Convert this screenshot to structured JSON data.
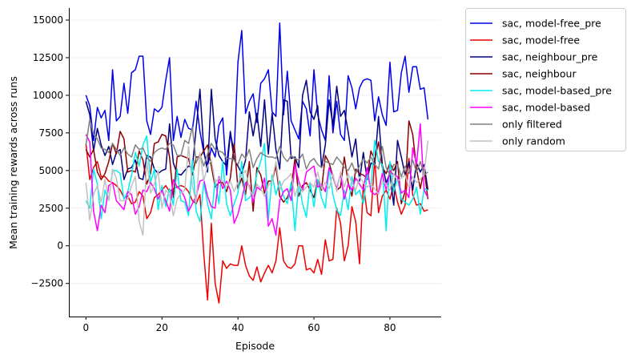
{
  "chart_data": {
    "type": "line",
    "xlabel": "Episode",
    "ylabel": "Mean training rewards across runs",
    "xlim": [
      -4.5,
      93.5
    ],
    "ylim": [
      -4700,
      15800
    ],
    "xticks": [
      0,
      20,
      40,
      60,
      80
    ],
    "yticks": [
      -2500,
      0,
      2500,
      5000,
      7500,
      10000,
      12500,
      15000
    ],
    "ytick_labels": [
      "−2500",
      "0",
      "2500",
      "5000",
      "7500",
      "10000",
      "12500",
      "15000"
    ],
    "grid": "horizontal",
    "legend_placement": "outside-top-right",
    "series": [
      {
        "name": "sac, model-free_pre",
        "color": "#0000ee",
        "values": [
          10000,
          9300,
          7000,
          9200,
          8500,
          9000,
          7000,
          11700,
          8300,
          8600,
          10800,
          8800,
          11500,
          11700,
          12600,
          12600,
          8300,
          7400,
          9100,
          8900,
          9200,
          11000,
          12500,
          7000,
          8600,
          7200,
          8400,
          7800,
          7700,
          9600,
          7600,
          6200,
          5300,
          6500,
          5900,
          8000,
          8500,
          4700,
          7500,
          6200,
          12200,
          14300,
          8800,
          9600,
          10100,
          8200,
          10800,
          11100,
          11700,
          8900,
          8600,
          14800,
          8700,
          11600,
          8300,
          7700,
          7100,
          9600,
          9100,
          7300,
          11700,
          8700,
          7700,
          7000,
          11300,
          7500,
          9600,
          7400,
          7000,
          11300,
          10500,
          9100,
          10500,
          11000,
          11100,
          11000,
          8300,
          9900,
          8700,
          8000,
          12200,
          8900,
          9000,
          11500,
          12600,
          10200,
          11900,
          11900,
          10400,
          10500,
          8400
        ]
      },
      {
        "name": "sac, model-free",
        "color": "#ee0000",
        "values": [
          6800,
          4400,
          5200,
          5600,
          4600,
          4600,
          4300,
          4200,
          4000,
          3700,
          3200,
          3300,
          2800,
          2900,
          3600,
          3300,
          1800,
          2200,
          3200,
          3400,
          3700,
          4000,
          3600,
          3800,
          3900,
          4000,
          3900,
          3600,
          3000,
          2800,
          3400,
          -500,
          -3600,
          1500,
          -2500,
          -3800,
          -1000,
          -1500,
          -1200,
          -1300,
          -1300,
          0,
          -1300,
          -2000,
          -2300,
          -1400,
          -2400,
          -1800,
          -1300,
          -1800,
          -1000,
          1200,
          -1000,
          -1400,
          -1500,
          -1200,
          0,
          0,
          -1600,
          -1500,
          -1800,
          -900,
          -1900,
          400,
          -1000,
          -900,
          2500,
          1500,
          -1000,
          0,
          2600,
          1600,
          -1200,
          4100,
          2200,
          2000,
          5800,
          2200,
          3300,
          3700,
          3100,
          4100,
          2900,
          2100,
          2700,
          5800,
          3400,
          2700,
          2800,
          2300,
          2400
        ]
      },
      {
        "name": "sac, neighbour_pre",
        "color": "#000080",
        "values": [
          9600,
          8700,
          6300,
          7800,
          6700,
          6000,
          6600,
          5400,
          6200,
          6400,
          4400,
          5100,
          5200,
          5700,
          4500,
          4400,
          6000,
          5900,
          5100,
          4800,
          5000,
          5100,
          8100,
          5500,
          4800,
          4700,
          5000,
          5300,
          5200,
          7800,
          10400,
          6400,
          4900,
          10400,
          7100,
          6000,
          5600,
          5300,
          7600,
          5700,
          5300,
          4800,
          5700,
          8900,
          7300,
          8800,
          6600,
          9700,
          6100,
          8800,
          6400,
          5100,
          9700,
          9600,
          5800,
          5900,
          5200,
          10000,
          11000,
          8900,
          8400,
          9300,
          5200,
          6700,
          9700,
          8000,
          10600,
          8600,
          9000,
          7600,
          5900,
          7100,
          4300,
          6200,
          4400,
          5500,
          5400,
          8600,
          5400,
          4200,
          4800,
          2700,
          7000,
          5900,
          4700,
          5600,
          3700,
          5500,
          4900,
          5400,
          3700
        ]
      },
      {
        "name": "sac, neighbour",
        "color": "#8b0000",
        "values": [
          6400,
          5900,
          6400,
          4900,
          4400,
          4800,
          5600,
          6800,
          6100,
          7600,
          7100,
          4900,
          5000,
          4900,
          6300,
          5700,
          4100,
          4800,
          6800,
          6900,
          7400,
          7300,
          5900,
          3200,
          5900,
          6000,
          5900,
          5800,
          4700,
          5900,
          5900,
          6300,
          6700,
          5300,
          3900,
          4200,
          4200,
          3600,
          4500,
          6800,
          3800,
          4500,
          3400,
          5600,
          2300,
          5200,
          4700,
          3500,
          4300,
          4300,
          5300,
          3300,
          2900,
          3200,
          3800,
          5800,
          3300,
          4000,
          4200,
          3700,
          3200,
          4400,
          3700,
          6000,
          5500,
          4600,
          3700,
          3900,
          5900,
          4200,
          3300,
          5100,
          4800,
          4700,
          4500,
          6300,
          5700,
          6900,
          5200,
          4800,
          5500,
          5000,
          5600,
          2800,
          3600,
          8300,
          7400,
          5100,
          3800,
          5100,
          3100
        ]
      },
      {
        "name": "sac, model-based_pre",
        "color": "#00eeee",
        "values": [
          3000,
          2500,
          5100,
          4100,
          1800,
          3700,
          3000,
          5000,
          5000,
          4800,
          3100,
          3600,
          4700,
          6200,
          5300,
          6700,
          7300,
          4200,
          5100,
          2400,
          4000,
          2600,
          3800,
          2700,
          5100,
          3000,
          2900,
          2000,
          5700,
          2300,
          1600,
          4200,
          2800,
          1800,
          4400,
          2800,
          5600,
          2800,
          2000,
          2800,
          3500,
          5600,
          3000,
          3200,
          3500,
          4800,
          5600,
          6800,
          1700,
          4700,
          3400,
          4300,
          3300,
          2800,
          4200,
          1000,
          4200,
          2800,
          1900,
          4200,
          2600,
          4400,
          3200,
          2500,
          5100,
          3400,
          2400,
          2000,
          3700,
          2400,
          4600,
          3400,
          3700,
          2800,
          4700,
          3900,
          7000,
          5600,
          5400,
          1000,
          5600,
          3600,
          4500,
          3100,
          2900,
          2700,
          3100,
          3900,
          2100,
          3800,
          3700
        ]
      },
      {
        "name": "sac, model-based",
        "color": "#ff00ff",
        "values": [
          7400,
          6900,
          2300,
          1000,
          2700,
          2200,
          4000,
          4200,
          3000,
          2700,
          2400,
          3600,
          3400,
          2100,
          2600,
          3700,
          3600,
          4200,
          3800,
          3100,
          3700,
          3000,
          2300,
          4400,
          3900,
          3700,
          3200,
          2300,
          2800,
          3300,
          4300,
          4400,
          3300,
          2600,
          2500,
          4600,
          3800,
          4300,
          3700,
          1500,
          2100,
          3100,
          4200,
          4000,
          2900,
          3900,
          3700,
          4500,
          1300,
          1800,
          700,
          3000,
          3600,
          3800,
          3000,
          5400,
          4300,
          3600,
          4900,
          5100,
          5300,
          3900,
          4100,
          3600,
          5200,
          4600,
          3800,
          4800,
          3100,
          4100,
          3700,
          4500,
          4100,
          3700,
          5200,
          3600,
          3400,
          3600,
          4800,
          3700,
          5000,
          4700,
          4600,
          3500,
          3700,
          3200,
          6500,
          5400,
          8100,
          3700,
          3200
        ]
      },
      {
        "name": "only filtered",
        "color": "#808080",
        "values": [
          6700,
          8400,
          7400,
          7100,
          6500,
          6400,
          6200,
          6800,
          6400,
          6000,
          6500,
          6100,
          5900,
          6700,
          6400,
          6500,
          5900,
          5600,
          6200,
          6400,
          6500,
          6400,
          6800,
          6700,
          6000,
          6000,
          7000,
          6800,
          7900,
          5500,
          6100,
          5300,
          6100,
          6800,
          6400,
          6300,
          6200,
          5800,
          5800,
          5700,
          5400,
          6100,
          5800,
          6400,
          5200,
          5800,
          6200,
          6000,
          5900,
          5900,
          5800,
          6600,
          5900,
          5600,
          6000,
          5800,
          5700,
          6100,
          5100,
          5600,
          5800,
          5400,
          5200,
          5600,
          5500,
          5400,
          5900,
          5600,
          5200,
          5000,
          5500,
          4800,
          5300,
          5800,
          5500,
          5900,
          5400,
          5100,
          6600,
          5200,
          4700,
          5400,
          5400,
          4600,
          5300,
          4800,
          5700,
          4900,
          5600,
          4700,
          4900
        ]
      },
      {
        "name": "only random",
        "color": "#c0c0c0",
        "values": [
          4200,
          1700,
          3400,
          4000,
          2900,
          4400,
          3000,
          5100,
          4500,
          3000,
          3000,
          3100,
          4000,
          4600,
          1600,
          700,
          5700,
          3500,
          4100,
          5000,
          2500,
          3700,
          3400,
          2000,
          3100,
          3500,
          3700,
          6600,
          4000,
          2900,
          6200,
          4300,
          5300,
          5700,
          4200,
          4500,
          4300,
          3900,
          4300,
          3600,
          4200,
          4700,
          5000,
          3800,
          3300,
          4100,
          3800,
          3300,
          4000,
          4300,
          5600,
          3700,
          4300,
          4500,
          4800,
          3300,
          4100,
          3600,
          3900,
          4200,
          3900,
          4900,
          3800,
          4200,
          3800,
          4800,
          3600,
          4900,
          3900,
          4800,
          4200,
          3700,
          4600,
          4200,
          3900,
          4100,
          3800,
          3400,
          4300,
          4100,
          3700,
          4800,
          4300,
          4500,
          4700,
          3900,
          4600,
          4200,
          4400,
          4800,
          7000
        ]
      }
    ]
  }
}
